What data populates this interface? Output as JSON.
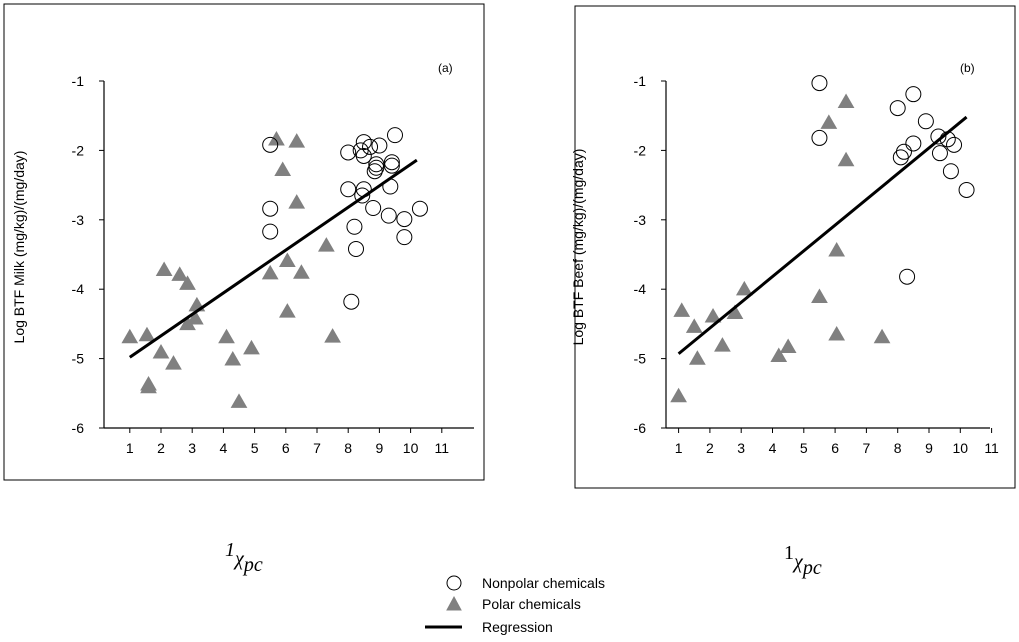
{
  "chart_data": [
    {
      "type": "scatter",
      "panel_label": "(a)",
      "ylabel": "Log BTF Milk (mg/kg)/(mg/day)",
      "xlabel_symbol": "χ",
      "xlabel_sup": "1",
      "xlabel_sub": "pc",
      "xlim": [
        0.5,
        11.5
      ],
      "ylim": [
        -6,
        -1
      ],
      "xticks": [
        1,
        2,
        3,
        4,
        5,
        6,
        7,
        8,
        9,
        10,
        11
      ],
      "yticks": [
        -1,
        -2,
        -3,
        -4,
        -5,
        -6
      ],
      "series": [
        {
          "name": "Nonpolar chemicals",
          "marker": "circle",
          "points": [
            [
              5.5,
              -1.92
            ],
            [
              5.5,
              -2.84
            ],
            [
              5.5,
              -3.17
            ],
            [
              8.0,
              -2.03
            ],
            [
              8.0,
              -2.56
            ],
            [
              8.1,
              -4.18
            ],
            [
              8.2,
              -3.1
            ],
            [
              8.25,
              -3.42
            ],
            [
              8.4,
              -2.0
            ],
            [
              8.45,
              -2.65
            ],
            [
              8.5,
              -1.88
            ],
            [
              8.5,
              -2.56
            ],
            [
              8.5,
              -2.08
            ],
            [
              8.7,
              -1.95
            ],
            [
              8.8,
              -2.83
            ],
            [
              8.85,
              -2.3
            ],
            [
              8.9,
              -2.2
            ],
            [
              8.9,
              -2.25
            ],
            [
              9.0,
              -1.93
            ],
            [
              9.3,
              -2.94
            ],
            [
              9.35,
              -2.52
            ],
            [
              9.4,
              -2.17
            ],
            [
              9.4,
              -2.22
            ],
            [
              9.5,
              -1.78
            ],
            [
              9.8,
              -2.99
            ],
            [
              9.8,
              -3.25
            ],
            [
              10.3,
              -2.84
            ]
          ]
        },
        {
          "name": "Polar chemicals",
          "marker": "triangle",
          "points": [
            [
              1.0,
              -4.7
            ],
            [
              1.55,
              -4.67
            ],
            [
              1.6,
              -5.38
            ],
            [
              1.6,
              -5.42
            ],
            [
              2.0,
              -4.92
            ],
            [
              2.1,
              -3.73
            ],
            [
              2.4,
              -5.08
            ],
            [
              2.6,
              -3.8
            ],
            [
              2.85,
              -3.93
            ],
            [
              2.85,
              -4.51
            ],
            [
              3.1,
              -4.43
            ],
            [
              3.15,
              -4.24
            ],
            [
              4.1,
              -4.7
            ],
            [
              4.3,
              -5.02
            ],
            [
              4.5,
              -5.63
            ],
            [
              4.9,
              -4.86
            ],
            [
              5.5,
              -3.78
            ],
            [
              5.7,
              -1.85
            ],
            [
              5.9,
              -2.29
            ],
            [
              6.05,
              -3.6
            ],
            [
              6.05,
              -4.33
            ],
            [
              6.35,
              -1.88
            ],
            [
              6.35,
              -2.76
            ],
            [
              6.5,
              -3.77
            ],
            [
              7.3,
              -3.38
            ],
            [
              7.5,
              -4.69
            ]
          ]
        }
      ],
      "regression": {
        "name": "Regression",
        "x": [
          1.0,
          10.2
        ],
        "y": [
          -4.98,
          -2.14
        ]
      }
    },
    {
      "type": "scatter",
      "panel_label": "(b)",
      "ylabel": "Log BTF Beef (mg/kg)/(mg/day)",
      "xlabel_symbol": "χ",
      "xlabel_sup": "1",
      "xlabel_sub": "pc",
      "xlim": [
        0.5,
        11.5
      ],
      "ylim": [
        -6,
        -1
      ],
      "xticks": [
        1,
        2,
        3,
        4,
        5,
        6,
        7,
        8,
        9,
        10,
        11
      ],
      "yticks": [
        -1,
        -2,
        -3,
        -4,
        -5,
        -6
      ],
      "series": [
        {
          "name": "Nonpolar chemicals",
          "marker": "circle",
          "points": [
            [
              5.5,
              -1.03
            ],
            [
              5.5,
              -1.82
            ],
            [
              8.0,
              -1.39
            ],
            [
              8.1,
              -2.1
            ],
            [
              8.2,
              -2.02
            ],
            [
              8.3,
              -3.82
            ],
            [
              8.5,
              -1.19
            ],
            [
              8.5,
              -1.9
            ],
            [
              8.9,
              -1.58
            ],
            [
              9.3,
              -1.8
            ],
            [
              9.35,
              -2.04
            ],
            [
              9.6,
              -1.84
            ],
            [
              9.7,
              -2.3
            ],
            [
              9.8,
              -1.92
            ],
            [
              10.2,
              -2.57
            ]
          ]
        },
        {
          "name": "Polar chemicals",
          "marker": "triangle",
          "points": [
            [
              1.0,
              -5.55
            ],
            [
              1.1,
              -4.32
            ],
            [
              1.5,
              -4.55
            ],
            [
              1.6,
              -5.01
            ],
            [
              2.1,
              -4.4
            ],
            [
              2.4,
              -4.82
            ],
            [
              2.8,
              -4.35
            ],
            [
              3.1,
              -4.01
            ],
            [
              4.2,
              -4.97
            ],
            [
              4.5,
              -4.84
            ],
            [
              5.5,
              -4.12
            ],
            [
              5.8,
              -1.61
            ],
            [
              6.05,
              -3.45
            ],
            [
              6.05,
              -4.66
            ],
            [
              6.35,
              -1.31
            ],
            [
              6.35,
              -2.15
            ],
            [
              7.5,
              -4.7
            ]
          ]
        }
      ],
      "regression": {
        "name": "Regression",
        "x": [
          1.0,
          10.2
        ],
        "y": [
          -4.93,
          -1.52
        ]
      }
    }
  ],
  "legend": {
    "items": [
      {
        "marker": "circle",
        "label": "Nonpolar chemicals"
      },
      {
        "marker": "triangle",
        "label": "Polar chemicals"
      },
      {
        "marker": "line",
        "label": "Regression"
      }
    ]
  },
  "colors": {
    "triangle_fill": "#808080",
    "line": "#000000",
    "frame": "#000000"
  }
}
